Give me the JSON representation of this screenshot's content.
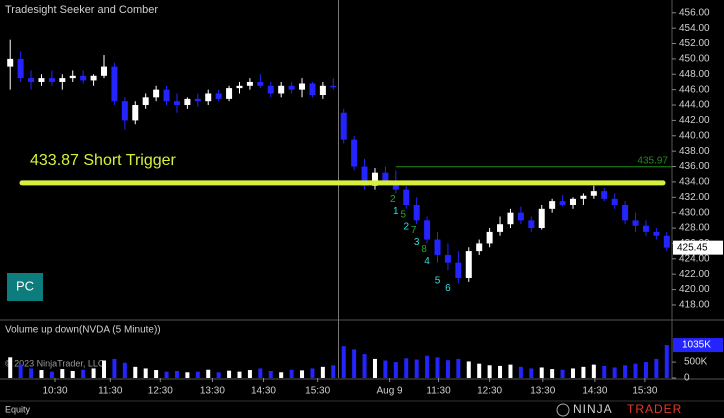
{
  "chart_data": {
    "type": "candlestick",
    "title": "Tradesight Seeker and Comber",
    "open": [
      449,
      450,
      447.5,
      447,
      447.5,
      447,
      447.5,
      447.8,
      447.2,
      447.8,
      449,
      444.5,
      442,
      444,
      445,
      446,
      444.5,
      444,
      444.8,
      444.5,
      445.5,
      444.8,
      446.2,
      446.5,
      447,
      446.5,
      445.5,
      446.5,
      446,
      446.8,
      445.3,
      446.5,
      443,
      439.5,
      436,
      433.5,
      435.2,
      434,
      433,
      431,
      429,
      426.5,
      424.5,
      423.5,
      421.5,
      425,
      426,
      427.5,
      428.5,
      430,
      429,
      428,
      430.5,
      431.5,
      431,
      431.8,
      432.2,
      432.8,
      431.8,
      431,
      429,
      428.3,
      427.5,
      427
    ],
    "high": [
      452.5,
      451,
      448.5,
      448,
      448.5,
      448,
      448.5,
      448.5,
      448,
      450.5,
      449.5,
      445,
      444.5,
      445.5,
      446.5,
      446.5,
      445.5,
      445,
      445.5,
      446,
      446,
      446.5,
      447,
      447.5,
      448,
      447,
      447,
      447,
      447.5,
      447,
      447,
      447.5,
      443.5,
      440,
      437,
      435.8,
      436,
      435.5,
      433.5,
      432,
      429.5,
      427.5,
      426,
      425,
      425.5,
      426.5,
      428,
      429.5,
      430.5,
      430.8,
      429.5,
      431,
      431.8,
      432.3,
      432,
      432.5,
      433.5,
      433.2,
      432.5,
      431.5,
      430,
      429,
      428,
      427.5
    ],
    "low": [
      446,
      447,
      446,
      446.5,
      446.5,
      446,
      447,
      446.8,
      446.5,
      447.5,
      444,
      440.8,
      441.5,
      443.5,
      444.5,
      444,
      443,
      443.5,
      443.8,
      444,
      444.5,
      444.5,
      445.5,
      446,
      446.2,
      445,
      445,
      445.5,
      445,
      445,
      444.8,
      446,
      439,
      435.5,
      433,
      433,
      433.8,
      432.5,
      430.5,
      428.5,
      426,
      423.5,
      422.5,
      420.8,
      421,
      424.5,
      425.5,
      427,
      428,
      428.5,
      427.5,
      427.8,
      430,
      430.8,
      430.5,
      431,
      431.8,
      431.5,
      430.5,
      428.5,
      427.5,
      427,
      426.5,
      425
    ],
    "close": [
      450,
      447.5,
      447,
      447.5,
      447,
      447.5,
      447.8,
      447.2,
      447.8,
      449,
      444.5,
      442,
      444,
      445,
      446,
      444.5,
      444,
      444.8,
      444.5,
      445.5,
      444.8,
      446.2,
      446.5,
      447,
      446.5,
      445.5,
      446.5,
      446,
      446.8,
      445.3,
      446.5,
      446.3,
      439.5,
      436,
      433.5,
      435.2,
      434,
      433,
      431,
      429,
      426.5,
      424.5,
      423.5,
      421.5,
      425,
      426,
      427.5,
      428.5,
      430,
      429,
      428,
      430.5,
      431.5,
      431,
      431.8,
      432.2,
      432.8,
      431.8,
      431,
      429,
      428.3,
      427.5,
      427,
      425.45
    ],
    "up_color": "#ffffff",
    "down_color": "#2424ff",
    "ylim": [
      416.3,
      457.4
    ],
    "yticks": [
      {
        "value": 418,
        "label": "418.00"
      },
      {
        "value": 420,
        "label": "420.00"
      },
      {
        "value": 422,
        "label": "422.00"
      },
      {
        "value": 424,
        "label": "424.00"
      },
      {
        "value": 426,
        "label": "426.00"
      },
      {
        "value": 428,
        "label": "428.00"
      },
      {
        "value": 430,
        "label": "430.00"
      },
      {
        "value": 432,
        "label": "432.00"
      },
      {
        "value": 434,
        "label": "434.00"
      },
      {
        "value": 436,
        "label": "436.00"
      },
      {
        "value": 438,
        "label": "438.00"
      },
      {
        "value": 440,
        "label": "440.00"
      },
      {
        "value": 442,
        "label": "442.00"
      },
      {
        "value": 444,
        "label": "444.00"
      },
      {
        "value": 446,
        "label": "446.00"
      },
      {
        "value": 448,
        "label": "448.00"
      },
      {
        "value": 450,
        "label": "450.00"
      },
      {
        "value": 452,
        "label": "452.00"
      },
      {
        "value": 454,
        "label": "454.00"
      },
      {
        "value": 456,
        "label": "456.00"
      }
    ],
    "xticks": [
      {
        "value": 4.3,
        "label": "10:30"
      },
      {
        "value": 9.6,
        "label": "11:30"
      },
      {
        "value": 14.4,
        "label": "12:30"
      },
      {
        "value": 19.4,
        "label": "13:30"
      },
      {
        "value": 24.3,
        "label": "14:30"
      },
      {
        "value": 29.5,
        "label": "15:30"
      },
      {
        "value": 36.4,
        "label": "Aug 9"
      },
      {
        "value": 41.1,
        "label": "11:30"
      },
      {
        "value": 46,
        "label": "12:30"
      },
      {
        "value": 51.1,
        "label": "13:30"
      },
      {
        "value": 56.1,
        "label": "14:30"
      },
      {
        "value": 60.9,
        "label": "15:30"
      }
    ],
    "trigger": {
      "value": 433.87,
      "label": "433.87 Short Trigger",
      "color": "#d8f03c"
    },
    "level": {
      "value": 435.97,
      "start": 37,
      "color": "#1e8c1e"
    },
    "counts": [
      {
        "index": 37,
        "label": 1
      },
      {
        "index": 38,
        "label": 2
      },
      {
        "index": 39,
        "label": 3
      },
      {
        "index": 40,
        "label": 4
      },
      {
        "index": 41,
        "label": 5
      },
      {
        "index": 42,
        "label": 6
      }
    ],
    "counts_color": "#33dddd",
    "setup_counts": [
      {
        "index": 37,
        "label": 2
      },
      {
        "index": 38,
        "label": 5
      },
      {
        "index": 39,
        "label": 7
      },
      {
        "index": 40,
        "label": 8
      }
    ],
    "setup_color": "#22aa22",
    "volume": {
      "title": "Volume up down(NVDA (5 Minute))",
      "values": [
        650000,
        420000,
        300000,
        250000,
        200000,
        280000,
        220000,
        260000,
        300000,
        550000,
        600000,
        480000,
        350000,
        300000,
        250000,
        200000,
        220000,
        180000,
        200000,
        260000,
        180000,
        230000,
        200000,
        250000,
        300000,
        220000,
        180000,
        260000,
        240000,
        300000,
        350000,
        400000,
        1000000,
        900000,
        750000,
        600000,
        550000,
        500000,
        620000,
        580000,
        700000,
        650000,
        560000,
        600000,
        520000,
        450000,
        400000,
        380000,
        420000,
        350000,
        300000,
        330000,
        280000,
        260000,
        300000,
        350000,
        420000,
        380000,
        330000,
        400000,
        450000,
        500000,
        600000,
        1035000
      ],
      "ylim": [
        0,
        1320000
      ],
      "yticks": [
        0,
        {
          "value": 500000,
          "label": "500K"
        }
      ],
      "last_label": "1035K"
    },
    "button": "PC",
    "copyright": "© 2023 NinjaTrader, LLC",
    "footer": "Equity",
    "logo": [
      "NINJA",
      "TRADER"
    ]
  }
}
